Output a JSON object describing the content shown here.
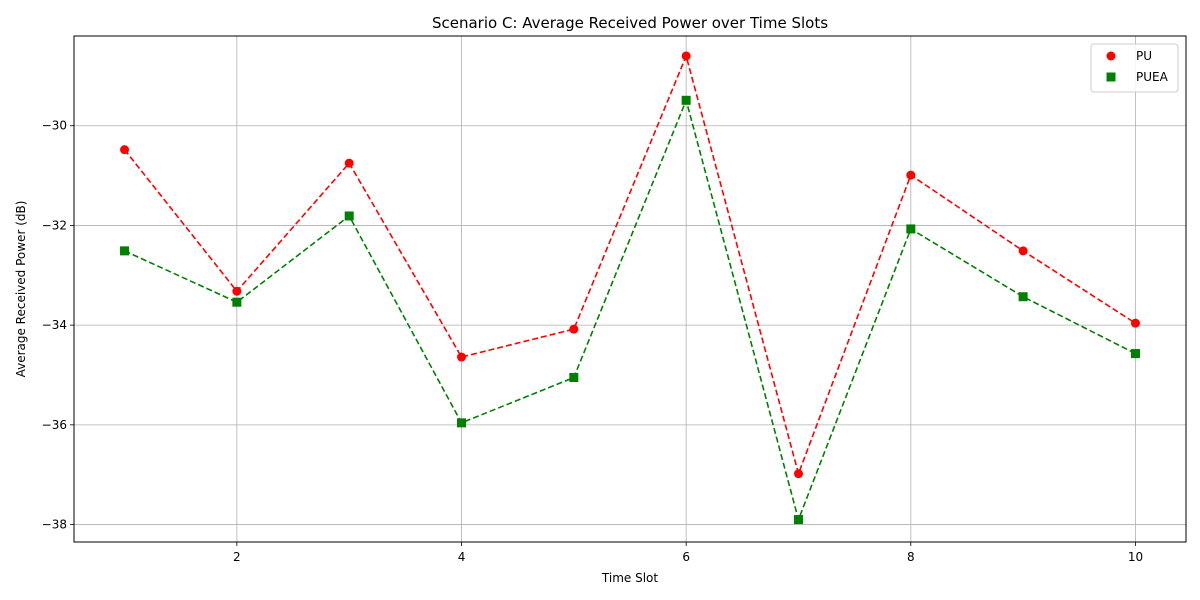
{
  "chart_data": {
    "type": "line",
    "title": "Scenario C: Average Received Power over Time Slots",
    "xlabel": "Time Slot",
    "ylabel": "Average Received Power (dB)",
    "xlim": [
      0.55,
      10.45
    ],
    "ylim": [
      -38.35,
      -28.2
    ],
    "xticks": [
      2,
      4,
      6,
      8,
      10
    ],
    "yticks": [
      -38,
      -36,
      -34,
      -32,
      -30
    ],
    "grid": true,
    "legend_position": "top-right",
    "x": [
      1,
      2,
      3,
      4,
      5,
      6,
      7,
      8,
      9,
      10
    ],
    "series": [
      {
        "name": "PU",
        "color": "#ff0000",
        "marker": "circle",
        "line_style": "dashed",
        "values": [
          -30.48,
          -33.32,
          -30.75,
          -34.64,
          -34.08,
          -28.6,
          -36.98,
          -30.99,
          -32.51,
          -33.96
        ]
      },
      {
        "name": "PUEA",
        "color": "#008000",
        "marker": "square",
        "line_style": "dashed",
        "values": [
          -32.51,
          -33.54,
          -31.81,
          -35.96,
          -35.05,
          -29.49,
          -37.9,
          -32.07,
          -33.43,
          -34.57
        ]
      }
    ]
  }
}
